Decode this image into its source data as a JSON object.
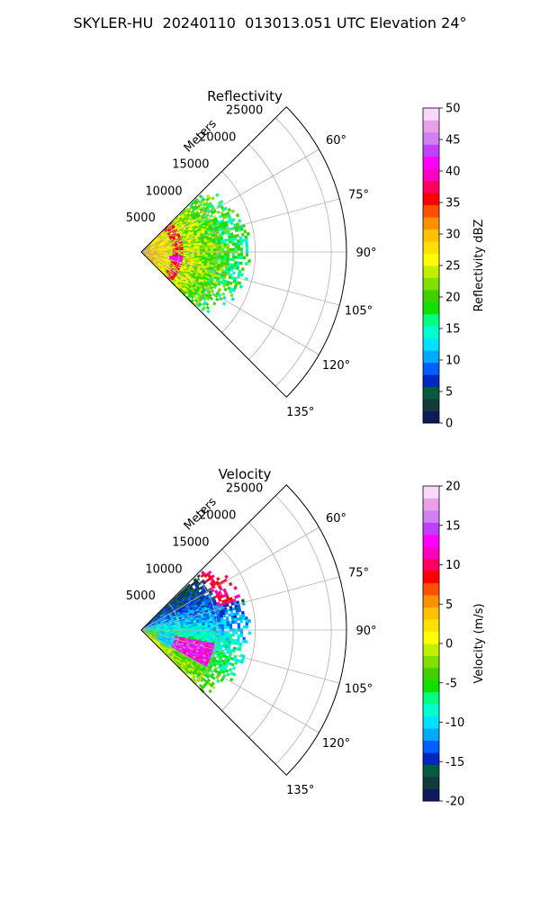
{
  "title": "SKYLER-HU  20240110  013013.051 UTC Elevation 24°",
  "chart_data": [
    {
      "type": "polar_sector",
      "title": "Reflectivity",
      "radial_axis_label": "Meters",
      "radial_ticks": [
        "5000",
        "10000",
        "15000",
        "20000",
        "25000"
      ],
      "radial_tick_values": [
        5000,
        10000,
        15000,
        20000,
        25000
      ],
      "rmax": 27000,
      "angle_ticks": [
        "60°",
        "75°",
        "90°",
        "105°",
        "120°",
        "135°"
      ],
      "angle_tick_values": [
        60,
        75,
        90,
        105,
        120,
        135
      ],
      "angle_range": [
        45,
        135
      ],
      "data_extent_m": 14000,
      "colorbar": {
        "label": "Reflectivity dBZ",
        "min": 0,
        "max": 50,
        "ticks": [
          "0",
          "5",
          "10",
          "15",
          "20",
          "25",
          "30",
          "35",
          "40",
          "45",
          "50"
        ],
        "tick_values": [
          0,
          5,
          10,
          15,
          20,
          25,
          30,
          35,
          40,
          45,
          50
        ],
        "colors": [
          "#0d1a5c",
          "#123a3a",
          "#0a5a40",
          "#0028c0",
          "#0060ff",
          "#00a8ff",
          "#00e0ff",
          "#00ffd0",
          "#00ff80",
          "#10e000",
          "#40d000",
          "#80e000",
          "#c0f000",
          "#ffff00",
          "#ffe000",
          "#ffc000",
          "#ff9000",
          "#ff5000",
          "#ff0000",
          "#ff0060",
          "#ff00c0",
          "#ff00ff",
          "#c040ff",
          "#d080f0",
          "#e8a0e8",
          "#f8d8f8"
        ]
      }
    },
    {
      "type": "polar_sector",
      "title": "Velocity",
      "radial_axis_label": "Meters",
      "radial_ticks": [
        "5000",
        "10000",
        "15000",
        "20000",
        "25000"
      ],
      "radial_tick_values": [
        5000,
        10000,
        15000,
        20000,
        25000
      ],
      "rmax": 27000,
      "angle_ticks": [
        "60°",
        "75°",
        "90°",
        "105°",
        "120°",
        "135°"
      ],
      "angle_tick_values": [
        60,
        75,
        90,
        105,
        120,
        135
      ],
      "angle_range": [
        45,
        135
      ],
      "data_extent_m": 14000,
      "colorbar": {
        "label": "Velocity (m/s)",
        "min": -20,
        "max": 20,
        "ticks": [
          "-20",
          "-15",
          "-10",
          "-5",
          "0",
          "5",
          "10",
          "15",
          "20"
        ],
        "tick_values": [
          -20,
          -15,
          -10,
          -5,
          0,
          5,
          10,
          15,
          20
        ],
        "colors": [
          "#0d1a5c",
          "#123a3a",
          "#0a5a40",
          "#0028c0",
          "#0060ff",
          "#00a8ff",
          "#00e0ff",
          "#00ffd0",
          "#00ff80",
          "#10e000",
          "#40d000",
          "#80e000",
          "#c0f000",
          "#ffff00",
          "#ffe000",
          "#ffc000",
          "#ff9000",
          "#ff5000",
          "#ff0000",
          "#ff0060",
          "#ff00c0",
          "#ff00ff",
          "#c040ff",
          "#d080f0",
          "#e8a0e8",
          "#f8d8f8"
        ]
      }
    }
  ]
}
